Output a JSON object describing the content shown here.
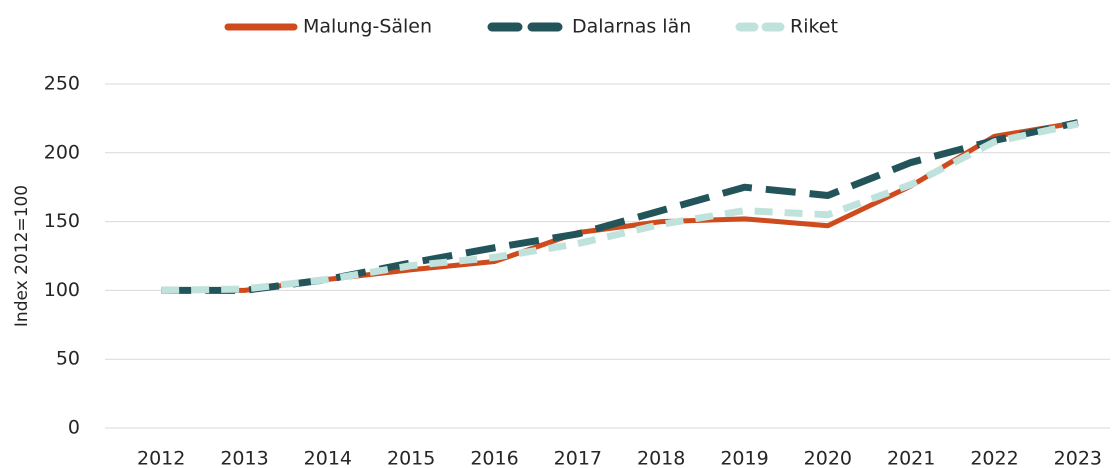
{
  "chart_data": {
    "type": "line",
    "y_axis_label": "Index 2012=100",
    "categories": [
      "2012",
      "2013",
      "2014",
      "2015",
      "2016",
      "2017",
      "2018",
      "2019",
      "2020",
      "2021",
      "2022",
      "2023"
    ],
    "series": [
      {
        "name": "Malung-Sälen",
        "color": "#cf4a1d",
        "values": [
          100,
          100,
          108,
          115,
          121,
          142,
          150,
          152,
          147,
          176,
          212,
          222
        ]
      },
      {
        "name": "Dalarnas län",
        "color": "#22545a",
        "values": [
          100,
          100,
          108,
          120,
          131,
          141,
          158,
          175,
          169,
          193,
          209,
          222
        ]
      },
      {
        "name": "Riket",
        "color": "#bfe3dc",
        "values": [
          100,
          101,
          108,
          118,
          124,
          134,
          148,
          158,
          155,
          177,
          208,
          221
        ]
      }
    ],
    "ylim": [
      0,
      250
    ],
    "yticks": [
      0,
      50,
      100,
      150,
      200,
      250
    ],
    "grid": true
  }
}
